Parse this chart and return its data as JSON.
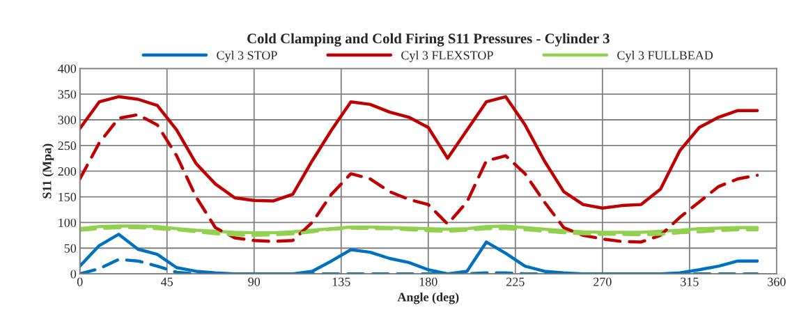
{
  "chart_data": {
    "type": "line",
    "title": "Cold Clamping and Cold Firing S11 Pressures - Cylinder 3",
    "xlabel": "Angle (deg)",
    "ylabel": "S11 (Mpa)",
    "x": [
      0,
      10,
      20,
      30,
      40,
      50,
      60,
      70,
      80,
      90,
      100,
      110,
      120,
      130,
      140,
      150,
      160,
      170,
      180,
      190,
      200,
      210,
      220,
      230,
      240,
      250,
      260,
      270,
      280,
      290,
      300,
      310,
      320,
      330,
      340,
      350
    ],
    "series": [
      {
        "name": "Cyl 3 STOP",
        "color": "#0070c0",
        "line_style": "solid",
        "values": [
          15,
          55,
          77,
          48,
          38,
          12,
          5,
          2,
          0,
          0,
          0,
          0,
          5,
          25,
          47,
          42,
          30,
          22,
          8,
          0,
          5,
          62,
          40,
          15,
          5,
          2,
          0,
          0,
          0,
          0,
          0,
          2,
          8,
          15,
          25,
          25
        ]
      },
      {
        "name": "Cyl 3 FLEXSTOP",
        "color": "#c00000",
        "line_style": "solid",
        "values": [
          283,
          335,
          345,
          340,
          328,
          280,
          215,
          175,
          148,
          143,
          142,
          155,
          220,
          280,
          335,
          330,
          315,
          305,
          285,
          225,
          280,
          335,
          345,
          290,
          220,
          160,
          135,
          128,
          133,
          135,
          165,
          240,
          285,
          305,
          318,
          318
        ]
      },
      {
        "name": "Cyl 3 FULLBEAD",
        "color": "#92d050",
        "line_style": "solid",
        "values": [
          88,
          92,
          93,
          93,
          92,
          88,
          85,
          83,
          81,
          80,
          80,
          82,
          85,
          88,
          91,
          91,
          90,
          89,
          88,
          87,
          88,
          92,
          93,
          90,
          87,
          84,
          82,
          81,
          81,
          81,
          83,
          85,
          88,
          89,
          90,
          90
        ]
      },
      {
        "color": "#0070c0",
        "line_style": "dashed",
        "values": [
          0,
          10,
          28,
          25,
          15,
          3,
          0,
          0,
          0,
          0,
          0,
          0,
          0,
          0,
          0,
          0,
          0,
          0,
          0,
          0,
          0,
          2,
          2,
          0,
          0,
          0,
          0,
          0,
          0,
          0,
          0,
          0,
          0,
          0,
          0,
          0
        ]
      },
      {
        "color": "#c00000",
        "line_style": "dashed",
        "values": [
          185,
          255,
          303,
          310,
          290,
          230,
          150,
          90,
          70,
          65,
          63,
          65,
          100,
          155,
          195,
          185,
          160,
          145,
          135,
          97,
          140,
          220,
          230,
          195,
          140,
          90,
          75,
          68,
          63,
          62,
          75,
          110,
          140,
          170,
          185,
          192
        ]
      },
      {
        "color": "#92d050",
        "line_style": "dashed",
        "values": [
          85,
          88,
          90,
          90,
          88,
          86,
          82,
          78,
          76,
          75,
          76,
          78,
          82,
          87,
          89,
          88,
          88,
          86,
          84,
          83,
          85,
          88,
          88,
          86,
          83,
          80,
          78,
          77,
          77,
          76,
          77,
          80,
          82,
          84,
          86,
          86
        ]
      }
    ],
    "xlim": [
      0,
      360
    ],
    "xticks": [
      0,
      45,
      90,
      135,
      180,
      225,
      270,
      315,
      360
    ],
    "ylim": [
      0,
      400
    ],
    "yticks": [
      0,
      50,
      100,
      150,
      200,
      250,
      300,
      350,
      400
    ],
    "grid": true,
    "legend": "top"
  }
}
